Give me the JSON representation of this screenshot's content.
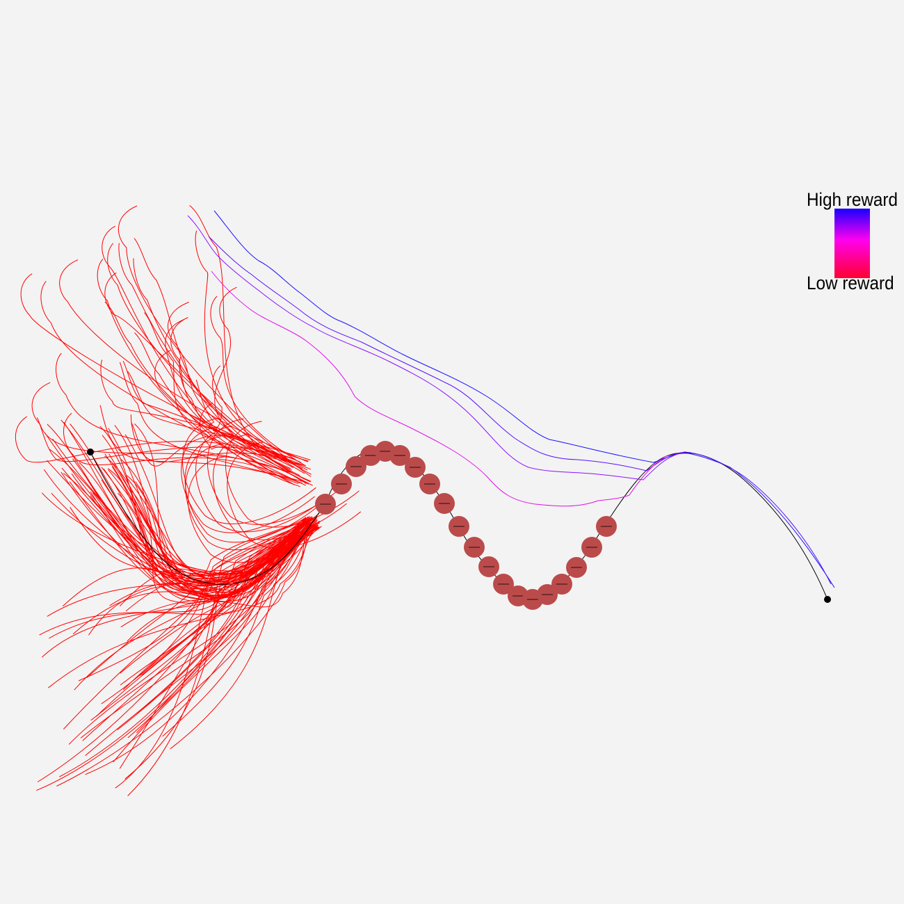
{
  "legend": {
    "high_label": "High reward",
    "low_label": "Low reward",
    "colors": {
      "high": "#1800ff",
      "mid": "#ff00f0",
      "low": "#ff0030"
    }
  },
  "colors": {
    "background": "#f3f3f3",
    "obstacle": "#bb4b4b",
    "low_reward_path": "#ff0000",
    "reference_path": "#000000"
  },
  "icons": {
    "obstacle": "filled-circle",
    "endpoint": "black-dot"
  }
}
